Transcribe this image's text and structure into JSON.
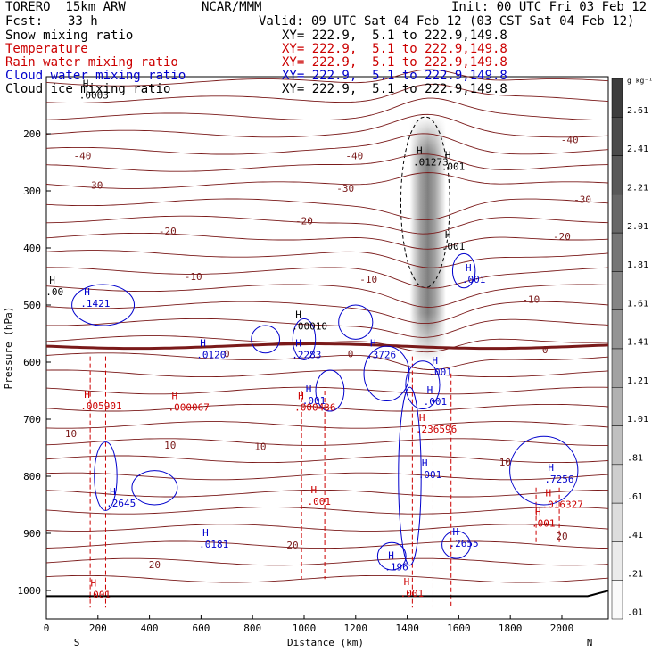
{
  "header": {
    "model": "TORERO  15km ARW",
    "org": "NCAR/MMM",
    "init": "Init: 00 UTC Fri 03 Feb 12",
    "fcst_label": "Fcst:",
    "fcst_value": "33 h",
    "valid": "Valid: 09 UTC Sat 04 Feb 12 (03 CST Sat 04 Feb 12)"
  },
  "fields": [
    {
      "name": "Snow mixing ratio",
      "xy": "XY= 222.9,  5.1 to 222.9,149.8",
      "color": "#000000"
    },
    {
      "name": "Temperature",
      "xy": "XY= 222.9,  5.1 to 222.9,149.8",
      "color": "#cc0000"
    },
    {
      "name": "Rain water mixing ratio",
      "xy": "XY= 222.9,  5.1 to 222.9,149.8",
      "color": "#cc0000"
    },
    {
      "name": "Cloud water mixing ratio",
      "xy": "XY= 222.9,  5.1 to 222.9,149.8",
      "color": "#0000cc"
    },
    {
      "name": "Cloud ice mixing ratio",
      "xy": "XY= 222.9,  5.1 to 222.9,149.8",
      "color": "#000000"
    }
  ],
  "chart_data": {
    "type": "contour",
    "ylabel": "Pressure (hPa)",
    "xlabel": "Distance (km)",
    "x_ticks": [
      0,
      200,
      400,
      600,
      800,
      1000,
      1200,
      1400,
      1600,
      1800,
      2000
    ],
    "y_ticks": [
      200,
      300,
      400,
      500,
      600,
      700,
      800,
      900,
      1000
    ],
    "xlim": [
      0,
      2180
    ],
    "ylim": [
      1050,
      100
    ],
    "left_end_label": "S",
    "right_end_label": "N",
    "colorbar_units": "g kg⁻¹",
    "colorbar_labels": [
      "2.61",
      "2.41",
      "2.21",
      "2.01",
      "1.81",
      "1.61",
      "1.41",
      "1.21",
      "1.01",
      ".81",
      ".61",
      ".41",
      ".21",
      ".01"
    ],
    "temperature_contours": [
      {
        "value": -40,
        "label": "-40",
        "pressure": 238
      },
      {
        "value": -30,
        "label": "-30",
        "pressure": 290
      },
      {
        "value": -20,
        "label": "-20",
        "pressure": 350
      },
      {
        "value": -10,
        "label": "-10",
        "pressure": 450
      },
      {
        "value": 0,
        "label": "0",
        "pressure": 572
      },
      {
        "value": 10,
        "label": "10",
        "pressure": 752
      },
      {
        "value": 20,
        "label": "20",
        "pressure": 940
      }
    ],
    "temperature_labels": [
      {
        "text": "-40",
        "x": 140,
        "p": 238
      },
      {
        "text": "-40",
        "x": 1195,
        "p": 238
      },
      {
        "text": "-40",
        "x": 2030,
        "p": 210
      },
      {
        "text": "-30",
        "x": 185,
        "p": 290
      },
      {
        "text": "-30",
        "x": 1160,
        "p": 295
      },
      {
        "text": "-30",
        "x": 2080,
        "p": 315
      },
      {
        "text": "-20",
        "x": 470,
        "p": 370
      },
      {
        "text": "-20",
        "x": 1000,
        "p": 352
      },
      {
        "text": "-20",
        "x": 2000,
        "p": 380
      },
      {
        "text": "-10",
        "x": 570,
        "p": 450
      },
      {
        "text": "-10",
        "x": 1250,
        "p": 455
      },
      {
        "text": "-10",
        "x": 1880,
        "p": 490
      },
      {
        "text": "0",
        "x": 700,
        "p": 585
      },
      {
        "text": "0",
        "x": 1180,
        "p": 585
      },
      {
        "text": "0",
        "x": 1935,
        "p": 578
      },
      {
        "text": "10",
        "x": 95,
        "p": 725
      },
      {
        "text": "10",
        "x": 480,
        "p": 745
      },
      {
        "text": "10",
        "x": 830,
        "p": 748
      },
      {
        "text": "10",
        "x": 1780,
        "p": 775
      },
      {
        "text": "20",
        "x": 955,
        "p": 920
      },
      {
        "text": "20",
        "x": 420,
        "p": 955
      },
      {
        "text": "20",
        "x": 2000,
        "p": 905
      }
    ],
    "maxima": [
      {
        "text": ".0003",
        "x": 155,
        "p": 135,
        "color": "#000000"
      },
      {
        "text": ".00",
        "x": 25,
        "p": 480,
        "color": "#000000"
      },
      {
        "text": ".1421",
        "x": 160,
        "p": 500,
        "color": "#0000cc"
      },
      {
        "text": ".00010",
        "x": 980,
        "p": 540,
        "color": "#000000"
      },
      {
        "text": ".0120",
        "x": 610,
        "p": 590,
        "color": "#0000cc"
      },
      {
        "text": ".2283",
        "x": 980,
        "p": 590,
        "color": "#0000cc"
      },
      {
        "text": ".3726",
        "x": 1270,
        "p": 590,
        "color": "#0000cc"
      },
      {
        "text": ".01273",
        "x": 1450,
        "p": 252,
        "color": "#000000"
      },
      {
        "text": ".001",
        "x": 1560,
        "p": 260,
        "color": "#000000"
      },
      {
        "text": ".001",
        "x": 1560,
        "p": 400,
        "color": "#000000"
      },
      {
        "text": ".001",
        "x": 1640,
        "p": 458,
        "color": "#0000cc"
      },
      {
        "text": ".001",
        "x": 1510,
        "p": 620,
        "color": "#0000cc"
      },
      {
        "text": ".001",
        "x": 1490,
        "p": 672,
        "color": "#0000cc"
      },
      {
        "text": ".001",
        "x": 1020,
        "p": 670,
        "color": "#0000cc"
      },
      {
        "text": ".005901",
        "x": 160,
        "p": 680,
        "color": "#cc0000"
      },
      {
        "text": ".000067",
        "x": 500,
        "p": 682,
        "color": "#cc0000"
      },
      {
        "text": ".000436",
        "x": 990,
        "p": 682,
        "color": "#cc0000"
      },
      {
        "text": ".236596",
        "x": 1460,
        "p": 720,
        "color": "#cc0000"
      },
      {
        "text": ".001",
        "x": 1470,
        "p": 800,
        "color": "#0000cc"
      },
      {
        "text": ".7256",
        "x": 1960,
        "p": 808,
        "color": "#0000cc"
      },
      {
        "text": ".2645",
        "x": 260,
        "p": 850,
        "color": "#0000cc"
      },
      {
        "text": ".001",
        "x": 1040,
        "p": 847,
        "color": "#cc0000"
      },
      {
        "text": ".016327",
        "x": 1950,
        "p": 852,
        "color": "#cc0000"
      },
      {
        "text": ".001",
        "x": 1910,
        "p": 885,
        "color": "#cc0000"
      },
      {
        "text": ".0181",
        "x": 620,
        "p": 922,
        "color": "#0000cc"
      },
      {
        "text": ".196",
        "x": 1340,
        "p": 962,
        "color": "#0000cc"
      },
      {
        "text": ".2655",
        "x": 1590,
        "p": 920,
        "color": "#0000cc"
      },
      {
        "text": ".001",
        "x": 185,
        "p": 1010,
        "color": "#cc0000"
      },
      {
        "text": ".001",
        "x": 1400,
        "p": 1008,
        "color": "#cc0000"
      }
    ],
    "snow_column": {
      "x_center": 1480,
      "x_halfwidth": 70,
      "p_top": 170,
      "p_bottom": 600,
      "max": 2.61
    }
  }
}
